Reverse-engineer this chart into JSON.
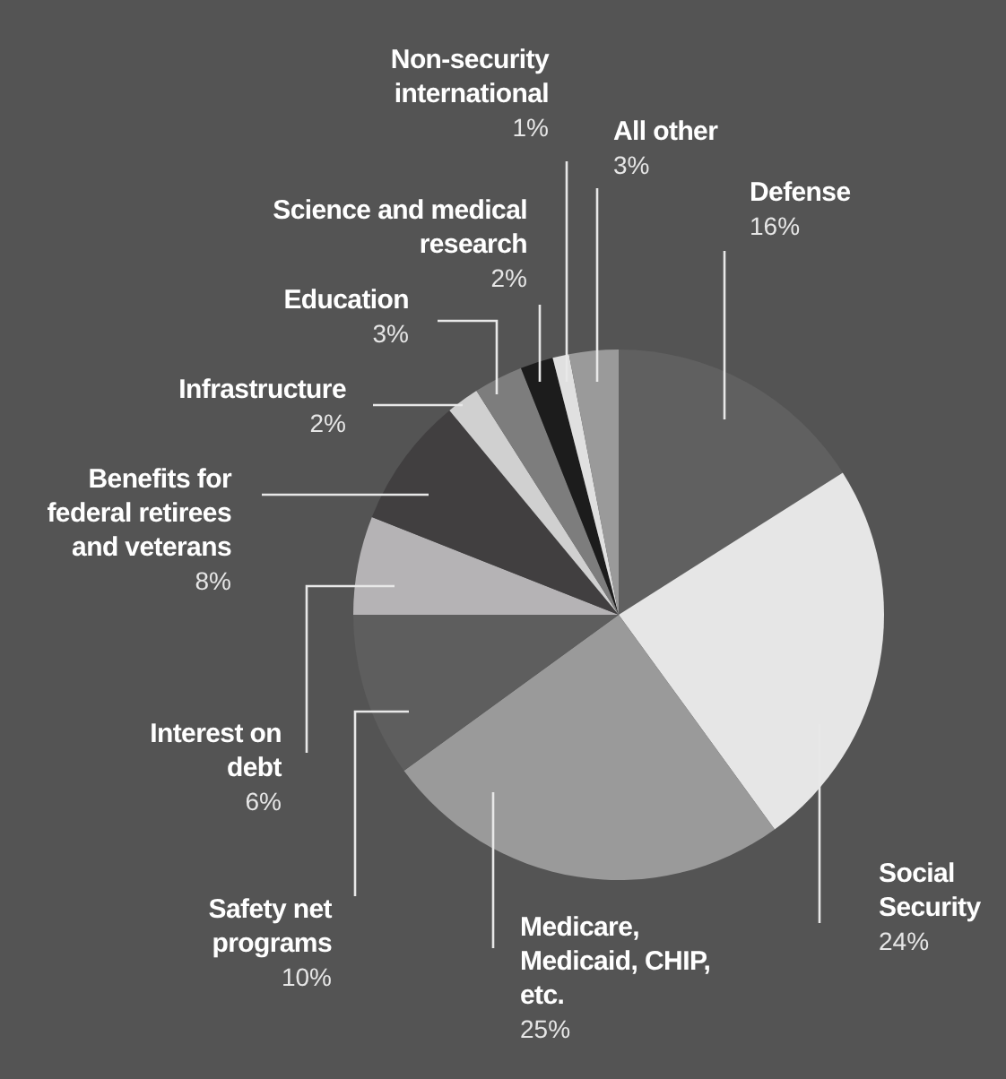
{
  "chart_data": {
    "type": "pie",
    "categories": [
      "Defense",
      "Social Security",
      "Medicare, Medicaid, CHIP, etc.",
      "Safety net programs",
      "Interest on debt",
      "Benefits for federal retirees and veterans",
      "Infrastructure",
      "Education",
      "Science and medical research",
      "Non-security international",
      "All other"
    ],
    "values": [
      16,
      24,
      25,
      10,
      6,
      8,
      2,
      3,
      2,
      1,
      3
    ],
    "value_labels": [
      "16%",
      "24%",
      "25%",
      "10%",
      "6%",
      "8%",
      "2%",
      "3%",
      "2%",
      "1%",
      "3%"
    ],
    "colors": [
      "#606060",
      "#e6e6e6",
      "#9a9a9a",
      "#5e5e5e",
      "#b5b3b5",
      "#413f40",
      "#d0d0d0",
      "#7d7d7d",
      "#1c1c1c",
      "#e0e0e0",
      "#9a9a9a"
    ]
  }
}
